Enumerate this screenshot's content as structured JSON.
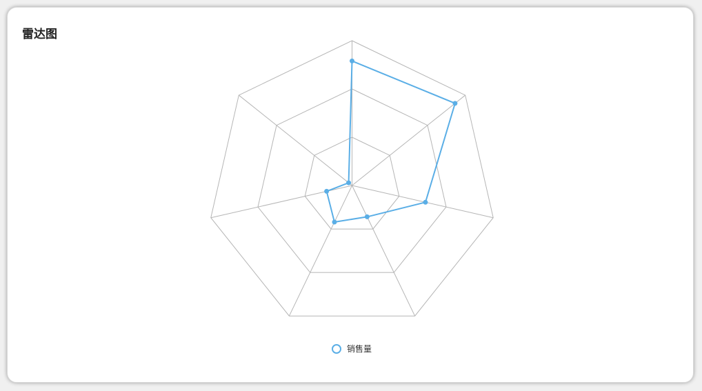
{
  "title": "雷达图",
  "colors": {
    "series": "#5aaee6",
    "grid": "#b5b5b5"
  },
  "chart_data": {
    "type": "radar",
    "title": "雷达图",
    "axes_count": 7,
    "rings": 3,
    "max": 100,
    "series": [
      {
        "name": "销售量",
        "values": [
          86,
          91,
          52,
          24,
          28,
          18,
          3
        ]
      }
    ],
    "legend": "bottom-center"
  }
}
